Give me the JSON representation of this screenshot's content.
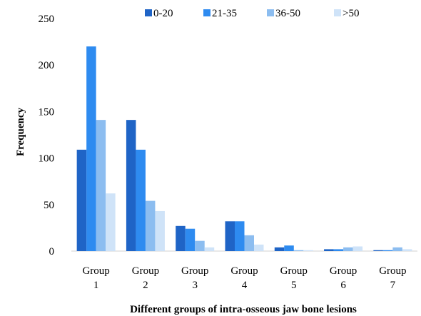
{
  "chart_data": {
    "type": "bar",
    "title": "",
    "xlabel": "Different groups of intra-osseous jaw bone lesions",
    "ylabel": "Frequency",
    "ylim": [
      0,
      250
    ],
    "yticks": [
      0,
      50,
      100,
      150,
      200,
      250
    ],
    "grid": false,
    "legend_position": "top-right",
    "categories": [
      [
        "Group",
        "1"
      ],
      [
        "Group",
        "2"
      ],
      [
        "Group",
        "3"
      ],
      [
        "Group",
        "4"
      ],
      [
        "Group",
        "5"
      ],
      [
        "Group",
        "6"
      ],
      [
        "Group",
        "7"
      ]
    ],
    "series": [
      {
        "name": "0-20",
        "color": "#1f64c6",
        "values": [
          109,
          141,
          27,
          32,
          4,
          2,
          1
        ]
      },
      {
        "name": "21-35",
        "color": "#2e8bf0",
        "values": [
          220,
          109,
          24,
          32,
          6,
          2,
          1
        ]
      },
      {
        "name": "36-50",
        "color": "#8cbdf0",
        "values": [
          141,
          54,
          11,
          17,
          1,
          4,
          4
        ]
      },
      {
        "name": ">50",
        "color": "#cfe3f8",
        "values": [
          62,
          43,
          4,
          7,
          1,
          5,
          2
        ]
      }
    ]
  }
}
